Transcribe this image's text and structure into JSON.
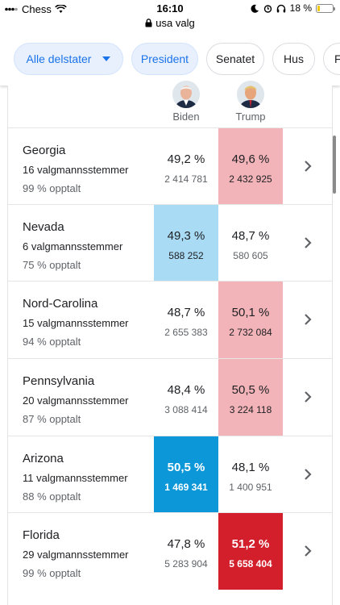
{
  "status_bar": {
    "carrier": "Chess",
    "time": "16:10",
    "battery_text": "18 %",
    "battery_level": 0.18
  },
  "url_bar": {
    "domain": "usa valg"
  },
  "filters": [
    {
      "label": "Alle delstater",
      "active": true,
      "dropdown": true
    },
    {
      "label": "President",
      "active": true
    },
    {
      "label": "Senatet",
      "active": false
    },
    {
      "label": "Hus",
      "active": false
    },
    {
      "label": "F",
      "active": false
    }
  ],
  "candidates": {
    "biden": {
      "name": "Biden"
    },
    "trump": {
      "name": "Trump"
    }
  },
  "colors": {
    "dem_light": "#a9dbf4",
    "dem_dark": "#0b97d8",
    "rep_light": "#f2b4b8",
    "rep_dark": "#d21f2b"
  },
  "states": [
    {
      "name": "Georgia",
      "electoral_votes": "16 valgmannsstemmer",
      "counted": "99 % opptalt",
      "biden_pct": "49,2 %",
      "biden_votes": "2 414 781",
      "trump_pct": "49,6 %",
      "trump_votes": "2 432 925",
      "leader": "trump",
      "called": false
    },
    {
      "name": "Nevada",
      "electoral_votes": "6 valgmannsstemmer",
      "counted": "75 % opptalt",
      "biden_pct": "49,3 %",
      "biden_votes": "588 252",
      "trump_pct": "48,7 %",
      "trump_votes": "580 605",
      "leader": "biden",
      "called": false
    },
    {
      "name": "Nord-Carolina",
      "electoral_votes": "15 valgmannsstemmer",
      "counted": "94 % opptalt",
      "biden_pct": "48,7 %",
      "biden_votes": "2 655 383",
      "trump_pct": "50,1 %",
      "trump_votes": "2 732 084",
      "leader": "trump",
      "called": false
    },
    {
      "name": "Pennsylvania",
      "electoral_votes": "20 valgmannsstemmer",
      "counted": "87 % opptalt",
      "biden_pct": "48,4 %",
      "biden_votes": "3 088 414",
      "trump_pct": "50,5 %",
      "trump_votes": "3 224 118",
      "leader": "trump",
      "called": false
    },
    {
      "name": "Arizona",
      "electoral_votes": "11 valgmannsstemmer",
      "counted": "88 % opptalt",
      "biden_pct": "50,5 %",
      "biden_votes": "1 469 341",
      "trump_pct": "48,1 %",
      "trump_votes": "1 400 951",
      "leader": "biden",
      "called": true
    },
    {
      "name": "Florida",
      "electoral_votes": "29 valgmannsstemmer",
      "counted": "99 % opptalt",
      "biden_pct": "47,8 %",
      "biden_votes": "5 283 904",
      "trump_pct": "51,2 %",
      "trump_votes": "5 658 404",
      "leader": "trump",
      "called": true
    }
  ]
}
